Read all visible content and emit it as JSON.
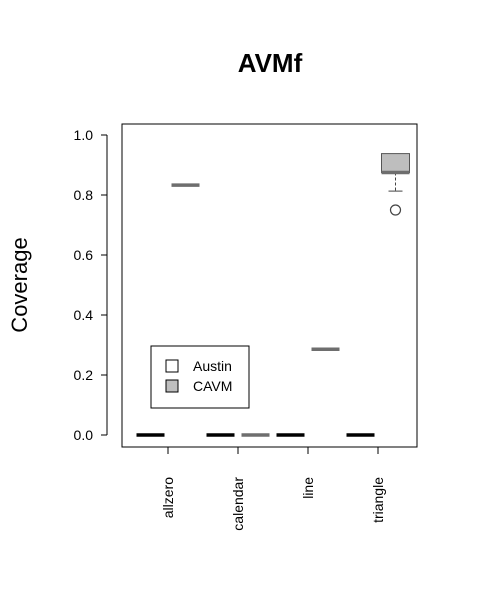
{
  "chart_data": {
    "type": "boxplot",
    "title": "AVMf",
    "ylabel": "Coverage",
    "xlabel": "",
    "ylim": [
      0,
      1.0
    ],
    "yticks": [
      "0.0",
      "0.2",
      "0.4",
      "0.6",
      "0.8",
      "1.0"
    ],
    "categories": [
      "allzero",
      "calendar",
      "line",
      "triangle"
    ],
    "legend": {
      "placement": "bottom-left",
      "entries": [
        "Austin",
        "CAVM"
      ]
    },
    "colors": {
      "Austin": "#ffffff",
      "CAVM": "#bebebe",
      "median": "#000000",
      "cavm_median": "#6e6e6e"
    },
    "series": [
      {
        "name": "Austin",
        "boxes": [
          {
            "category": "allzero",
            "min": 0.0,
            "q1": 0.0,
            "median": 0.0,
            "q3": 0.0,
            "max": 0.0,
            "outliers": []
          },
          {
            "category": "calendar",
            "min": 0.0,
            "q1": 0.0,
            "median": 0.0,
            "q3": 0.0,
            "max": 0.0,
            "outliers": []
          },
          {
            "category": "line",
            "min": 0.0,
            "q1": 0.0,
            "median": 0.0,
            "q3": 0.0,
            "max": 0.0,
            "outliers": []
          },
          {
            "category": "triangle",
            "min": 0.0,
            "q1": 0.0,
            "median": 0.0,
            "q3": 0.0,
            "max": 0.0,
            "outliers": []
          }
        ]
      },
      {
        "name": "CAVM",
        "boxes": [
          {
            "category": "allzero",
            "min": 0.833,
            "q1": 0.833,
            "median": 0.833,
            "q3": 0.833,
            "max": 0.833,
            "outliers": []
          },
          {
            "category": "calendar",
            "min": 0.0,
            "q1": 0.0,
            "median": 0.0,
            "q3": 0.0,
            "max": 0.0,
            "outliers": []
          },
          {
            "category": "line",
            "min": 0.286,
            "q1": 0.286,
            "median": 0.286,
            "q3": 0.286,
            "max": 0.286,
            "outliers": []
          },
          {
            "category": "triangle",
            "min": 0.813,
            "q1": 0.875,
            "median": 0.875,
            "q3": 0.938,
            "max": 0.938,
            "outliers": [
              0.75
            ]
          }
        ]
      }
    ]
  }
}
